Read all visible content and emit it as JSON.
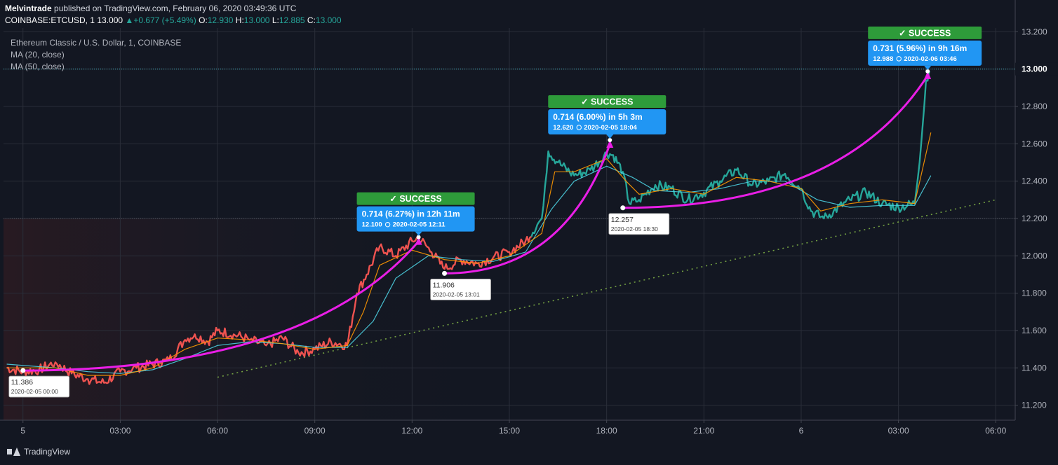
{
  "header": {
    "publisher": "Melvintrade",
    "published_on": "published on TradingView.com, February 06, 2020 03:49:36 UTC",
    "symbol": "COINBASE:ETCUSD, 1",
    "last": "13.000",
    "change": "+0.677 (+5.49%)",
    "o_label": "O:",
    "o_value": "12.930",
    "h_label": "H:",
    "h_value": "13.000",
    "l_label": "L:",
    "l_value": "12.885",
    "c_label": "C:",
    "c_value": "13.000"
  },
  "legend": {
    "instrument": "Ethereum Classic / U.S. Dollar, 1, COINBASE",
    "ma20": "MA (20, close)",
    "ma50": "MA (50, close)"
  },
  "footer": {
    "brand": "TradingView"
  },
  "colors": {
    "background": "#131722",
    "down": "#ef5350",
    "up": "#26a69a",
    "ma20": "#ff9800",
    "ma50": "#4dd0e1",
    "curve": "#e91ee6",
    "success": "#2e9b3a",
    "callout": "#2196f3",
    "trendline": "#8bc34a"
  },
  "chart_data": {
    "type": "line",
    "y_ticks": [
      "13.200",
      "13.000",
      "12.800",
      "12.600",
      "12.400",
      "12.200",
      "12.000",
      "11.800",
      "11.600",
      "11.400",
      "11.200"
    ],
    "ylim": [
      11.12,
      13.22
    ],
    "x_ticks": [
      {
        "h": 0,
        "label": "5"
      },
      {
        "h": 3,
        "label": "03:00"
      },
      {
        "h": 6,
        "label": "06:00"
      },
      {
        "h": 9,
        "label": "09:00"
      },
      {
        "h": 12,
        "label": "12:00"
      },
      {
        "h": 15,
        "label": "15:00"
      },
      {
        "h": 18,
        "label": "18:00"
      },
      {
        "h": 21,
        "label": "21:00"
      },
      {
        "h": 24,
        "label": "6"
      },
      {
        "h": 27,
        "label": "03:00"
      },
      {
        "h": 30,
        "label": "06:00"
      }
    ],
    "xlim": [
      -0.6,
      30.6
    ],
    "price_series": [
      [
        -0.5,
        11.4
      ],
      [
        0.0,
        11.38
      ],
      [
        0.5,
        11.39
      ],
      [
        1.0,
        11.43
      ],
      [
        1.5,
        11.37
      ],
      [
        2.0,
        11.34
      ],
      [
        2.5,
        11.32
      ],
      [
        3.0,
        11.38
      ],
      [
        3.5,
        11.4
      ],
      [
        4.0,
        11.42
      ],
      [
        4.5,
        11.44
      ],
      [
        5.0,
        11.55
      ],
      [
        5.3,
        11.58
      ],
      [
        5.7,
        11.54
      ],
      [
        6.0,
        11.6
      ],
      [
        6.5,
        11.58
      ],
      [
        7.0,
        11.55
      ],
      [
        7.5,
        11.52
      ],
      [
        8.0,
        11.56
      ],
      [
        8.5,
        11.48
      ],
      [
        9.0,
        11.5
      ],
      [
        9.5,
        11.54
      ],
      [
        10.0,
        11.52
      ],
      [
        10.3,
        11.8
      ],
      [
        10.6,
        11.9
      ],
      [
        11.0,
        12.05
      ],
      [
        11.5,
        12.0
      ],
      [
        12.0,
        12.08
      ],
      [
        12.2,
        12.1
      ],
      [
        12.6,
        12.02
      ],
      [
        13.0,
        11.93
      ],
      [
        13.5,
        11.98
      ],
      [
        14.0,
        11.96
      ],
      [
        14.5,
        11.99
      ],
      [
        15.0,
        12.02
      ],
      [
        15.5,
        12.08
      ],
      [
        16.0,
        12.2
      ],
      [
        16.2,
        12.56
      ],
      [
        16.5,
        12.5
      ],
      [
        17.0,
        12.43
      ],
      [
        17.5,
        12.46
      ],
      [
        18.0,
        12.55
      ],
      [
        18.2,
        12.54
      ],
      [
        18.5,
        12.45
      ],
      [
        18.7,
        12.28
      ],
      [
        19.0,
        12.3
      ],
      [
        19.5,
        12.38
      ],
      [
        20.0,
        12.36
      ],
      [
        20.5,
        12.3
      ],
      [
        21.0,
        12.34
      ],
      [
        21.5,
        12.4
      ],
      [
        22.0,
        12.46
      ],
      [
        22.5,
        12.38
      ],
      [
        23.0,
        12.4
      ],
      [
        23.5,
        12.44
      ],
      [
        24.0,
        12.36
      ],
      [
        24.3,
        12.24
      ],
      [
        24.7,
        12.2
      ],
      [
        25.0,
        12.24
      ],
      [
        25.5,
        12.3
      ],
      [
        26.0,
        12.34
      ],
      [
        26.5,
        12.28
      ],
      [
        27.0,
        12.26
      ],
      [
        27.5,
        12.28
      ],
      [
        27.7,
        12.6
      ],
      [
        27.85,
        12.94
      ],
      [
        27.95,
        12.99
      ]
    ],
    "ma20_series": [
      [
        -0.5,
        11.4
      ],
      [
        1.0,
        11.4
      ],
      [
        2.0,
        11.36
      ],
      [
        3.0,
        11.36
      ],
      [
        4.0,
        11.4
      ],
      [
        5.0,
        11.5
      ],
      [
        6.0,
        11.56
      ],
      [
        7.0,
        11.55
      ],
      [
        8.0,
        11.53
      ],
      [
        9.0,
        11.5
      ],
      [
        10.0,
        11.52
      ],
      [
        10.5,
        11.7
      ],
      [
        11.0,
        11.95
      ],
      [
        12.0,
        12.03
      ],
      [
        13.0,
        11.98
      ],
      [
        14.0,
        11.96
      ],
      [
        15.0,
        12.0
      ],
      [
        16.0,
        12.12
      ],
      [
        16.4,
        12.45
      ],
      [
        17.0,
        12.45
      ],
      [
        18.0,
        12.52
      ],
      [
        18.6,
        12.4
      ],
      [
        19.0,
        12.33
      ],
      [
        20.0,
        12.36
      ],
      [
        21.0,
        12.33
      ],
      [
        22.0,
        12.42
      ],
      [
        23.0,
        12.4
      ],
      [
        24.0,
        12.36
      ],
      [
        24.6,
        12.24
      ],
      [
        25.5,
        12.28
      ],
      [
        26.5,
        12.3
      ],
      [
        27.5,
        12.28
      ],
      [
        28.0,
        12.66
      ]
    ],
    "ma50_series": [
      [
        -0.5,
        11.42
      ],
      [
        1.0,
        11.4
      ],
      [
        2.0,
        11.38
      ],
      [
        3.0,
        11.37
      ],
      [
        4.0,
        11.39
      ],
      [
        5.0,
        11.45
      ],
      [
        6.0,
        11.52
      ],
      [
        7.0,
        11.54
      ],
      [
        8.0,
        11.53
      ],
      [
        9.0,
        11.51
      ],
      [
        10.0,
        11.51
      ],
      [
        10.8,
        11.65
      ],
      [
        11.5,
        11.88
      ],
      [
        12.5,
        12.0
      ],
      [
        13.5,
        11.98
      ],
      [
        14.5,
        11.97
      ],
      [
        15.5,
        12.02
      ],
      [
        16.3,
        12.25
      ],
      [
        17.0,
        12.4
      ],
      [
        18.0,
        12.48
      ],
      [
        18.8,
        12.42
      ],
      [
        19.5,
        12.35
      ],
      [
        20.5,
        12.34
      ],
      [
        21.5,
        12.36
      ],
      [
        22.5,
        12.4
      ],
      [
        23.5,
        12.4
      ],
      [
        24.5,
        12.3
      ],
      [
        25.5,
        12.26
      ],
      [
        26.5,
        12.27
      ],
      [
        27.5,
        12.27
      ],
      [
        28.0,
        12.43
      ]
    ],
    "trendline": [
      [
        6.0,
        11.35
      ],
      [
        30.0,
        12.3
      ]
    ],
    "moves": [
      {
        "from": [
          0.0,
          11.386
        ],
        "to": [
          12.2,
          12.1
        ],
        "start_label": "11.386",
        "start_date": "2020-02-05 00:00",
        "success": "✓ SUCCESS",
        "gain": "0.714 (6.27%) in 12h 11m",
        "target": "12.100",
        "target_date": "2020-02-05  12:11"
      },
      {
        "from": [
          13.0,
          11.906
        ],
        "to": [
          18.1,
          12.62
        ],
        "start_label": "11.906",
        "start_date": "2020-02-05 13:01",
        "success": "✓ SUCCESS",
        "gain": "0.714 (6.00%) in 5h 3m",
        "target": "12.620",
        "target_date": "2020-02-05  18:04"
      },
      {
        "from": [
          18.5,
          12.257
        ],
        "to": [
          27.9,
          12.988
        ],
        "start_label": "12.257",
        "start_date": "2020-02-05 18:30",
        "success": "✓ SUCCESS",
        "gain": "0.731 (5.96%) in 9h 16m",
        "target": "12.988",
        "target_date": "2020-02-06  03:46"
      }
    ],
    "price_marks": [
      {
        "value": 13.0,
        "label": "13.000",
        "highlight": true
      },
      {
        "value": 12.2,
        "label": "",
        "highlight": false
      }
    ]
  }
}
